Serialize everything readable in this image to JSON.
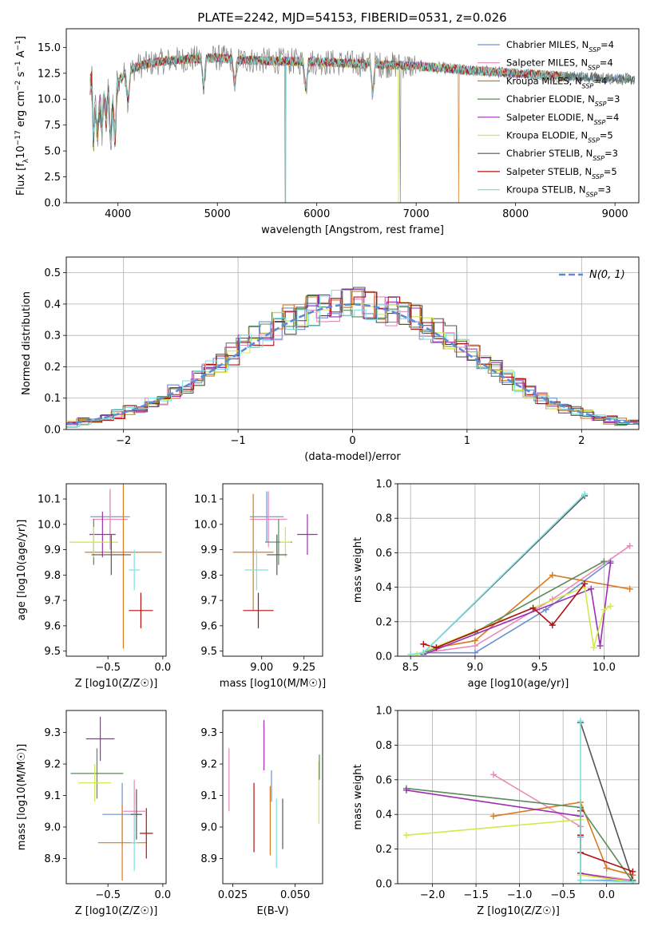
{
  "chart_data": [
    {
      "id": "spectrum",
      "type": "line",
      "title": "PLATE=2242, MJD=54153, FIBERID=0531, z=0.026",
      "xlabel": "wavelength [Angstrom, rest frame]",
      "ylabel": "Flux [f_λ 10^-17 erg cm^-2 s^-1 A^-1]",
      "xlim": [
        3480,
        9240
      ],
      "ylim": [
        0,
        16.8
      ],
      "xticks": [
        4000,
        5000,
        6000,
        7000,
        8000,
        9000
      ],
      "yticks": [
        0.0,
        2.5,
        5.0,
        7.5,
        10.0,
        12.5,
        15.0
      ],
      "legend_position": "top-right",
      "series": [
        {
          "name": "Chabrier MILES, N_SSP=4",
          "color": "#6b8fd6"
        },
        {
          "name": "Salpeter MILES, N_SSP=4",
          "color": "#e88ab8"
        },
        {
          "name": "Kroupa MILES, N_SSP=4",
          "color": "#d97a1e"
        },
        {
          "name": "Chabrier ELODIE, N_SSP=3",
          "color": "#5a8a5a"
        },
        {
          "name": "Salpeter ELODIE, N_SSP=4",
          "color": "#9b2fb0"
        },
        {
          "name": "Kroupa ELODIE, N_SSP=5",
          "color": "#d4e84a"
        },
        {
          "name": "Chabrier STELIB, N_SSP=3",
          "color": "#555555"
        },
        {
          "name": "Salpeter STELIB, N_SSP=5",
          "color": "#b01010"
        },
        {
          "name": "Kroupa STELIB, N_SSP=3",
          "color": "#7fe0e0"
        }
      ],
      "observed_color": "#808080",
      "continuum": {
        "x": [
          3750,
          3850,
          3950,
          4050,
          4200,
          4400,
          4600,
          4800,
          5000,
          5200,
          5500,
          6000,
          6500,
          7000,
          7500,
          8000,
          8500,
          9000,
          9200
        ],
        "y": [
          8.5,
          10.0,
          11.0,
          12.3,
          13.2,
          13.6,
          13.8,
          13.9,
          14.0,
          13.8,
          13.7,
          13.6,
          13.4,
          13.2,
          12.8,
          12.5,
          12.2,
          12.0,
          11.9
        ]
      }
    },
    {
      "id": "residuals",
      "type": "line",
      "xlabel": "(data-model)/error",
      "ylabel": "Normed distribution",
      "xlim": [
        -2.5,
        2.5
      ],
      "ylim": [
        0,
        0.55
      ],
      "xticks": [
        -2,
        -1,
        0,
        1,
        2
      ],
      "yticks": [
        0.0,
        0.1,
        0.2,
        0.3,
        0.4,
        0.5
      ],
      "legend": "N(0, 1)",
      "legend_position": "top-right",
      "bin_width": 0.1,
      "base": [
        0.02,
        0.025,
        0.03,
        0.04,
        0.05,
        0.06,
        0.07,
        0.085,
        0.1,
        0.12,
        0.14,
        0.165,
        0.19,
        0.215,
        0.24,
        0.27,
        0.29,
        0.31,
        0.33,
        0.35,
        0.365,
        0.38,
        0.39,
        0.395,
        0.4,
        0.4,
        0.395,
        0.39,
        0.38,
        0.365,
        0.35,
        0.33,
        0.31,
        0.29,
        0.27,
        0.24,
        0.215,
        0.19,
        0.165,
        0.14,
        0.12,
        0.1,
        0.085,
        0.07,
        0.06,
        0.05,
        0.04,
        0.03,
        0.025,
        0.02
      ]
    },
    {
      "id": "age-vs-Z",
      "type": "scatter",
      "xlabel": "Z [log10(Z/Z☉)]",
      "ylabel": "age  [log10(age/yr)]",
      "xlim": [
        -0.88,
        0.03
      ],
      "ylim": [
        9.48,
        10.16
      ],
      "xticks": [
        -0.5,
        0.0
      ],
      "xticklabels": [
        "−0.5",
        "0.0"
      ],
      "yticks": [
        9.5,
        9.6,
        9.7,
        9.8,
        9.9,
        10.0,
        10.1
      ],
      "points": [
        {
          "x": -0.48,
          "y": 10.03,
          "xerr": 0.18,
          "yerr": 0.1,
          "color": "#6b8fd6"
        },
        {
          "x": -0.48,
          "y": 10.02,
          "xerr": 0.16,
          "yerr": 0.12,
          "color": "#e88ab8"
        },
        {
          "x": -0.36,
          "y": 9.89,
          "xerr": 0.35,
          "yerr": 0.38,
          "color": "#d97a1e"
        },
        {
          "x": -0.63,
          "y": 9.93,
          "xerr": 0.22,
          "yerr": 0.09,
          "color": "#5a8a5a"
        },
        {
          "x": -0.55,
          "y": 9.96,
          "xerr": 0.12,
          "yerr": 0.09,
          "color": "#9b2fb0"
        },
        {
          "x": -0.63,
          "y": 9.93,
          "xerr": 0.22,
          "yerr": 0.06,
          "color": "#d4e84a"
        },
        {
          "x": -0.47,
          "y": 9.88,
          "xerr": 0.18,
          "yerr": 0.08,
          "color": "#555555"
        },
        {
          "x": -0.2,
          "y": 9.66,
          "xerr": 0.11,
          "yerr": 0.07,
          "color": "#b01010"
        },
        {
          "x": -0.26,
          "y": 9.82,
          "xerr": 0.05,
          "yerr": 0.08,
          "color": "#7fe0e0"
        }
      ]
    },
    {
      "id": "age-vs-mass",
      "type": "scatter",
      "xlabel": "mass [log10(M/M☉)]",
      "ylabel": "",
      "xlim": [
        8.77,
        9.36
      ],
      "ylim": [
        9.48,
        10.16
      ],
      "xticks": [
        9.0,
        9.25
      ],
      "xticklabels": [
        "9.00",
        "9.25"
      ],
      "yticks": [
        9.5,
        9.6,
        9.7,
        9.8,
        9.9,
        10.0,
        10.1
      ],
      "points": [
        {
          "x": 9.03,
          "y": 10.03,
          "xerr": 0.1,
          "yerr": 0.1,
          "color": "#6b8fd6"
        },
        {
          "x": 9.04,
          "y": 10.02,
          "xerr": 0.11,
          "yerr": 0.11,
          "color": "#e88ab8"
        },
        {
          "x": 8.95,
          "y": 9.89,
          "xerr": 0.12,
          "yerr": 0.23,
          "color": "#d97a1e"
        },
        {
          "x": 9.1,
          "y": 9.93,
          "xerr": 0.08,
          "yerr": 0.09,
          "color": "#5a8a5a"
        },
        {
          "x": 9.27,
          "y": 9.96,
          "xerr": 0.06,
          "yerr": 0.08,
          "color": "#9b2fb0"
        },
        {
          "x": 9.14,
          "y": 9.93,
          "xerr": 0.03,
          "yerr": 0.06,
          "color": "#d4e84a"
        },
        {
          "x": 9.09,
          "y": 9.88,
          "xerr": 0.06,
          "yerr": 0.08,
          "color": "#555555"
        },
        {
          "x": 8.98,
          "y": 9.66,
          "xerr": 0.09,
          "yerr": 0.07,
          "color": "#b01010"
        },
        {
          "x": 8.97,
          "y": 9.82,
          "xerr": 0.07,
          "yerr": 0.08,
          "color": "#7fe0e0"
        }
      ]
    },
    {
      "id": "mass-vs-Z",
      "type": "scatter",
      "xlabel": "Z [log10(Z/Z☉)]",
      "ylabel": "mass [log10(M/M☉)]",
      "xlim": [
        -0.88,
        0.03
      ],
      "ylim": [
        8.82,
        9.37
      ],
      "xticks": [
        -0.5,
        0.0
      ],
      "xticklabels": [
        "−0.5",
        "0.0"
      ],
      "yticks": [
        8.9,
        9.0,
        9.1,
        9.2,
        9.3
      ],
      "points": [
        {
          "x": -0.37,
          "y": 9.04,
          "xerr": 0.18,
          "yerr": 0.1,
          "color": "#6b8fd6"
        },
        {
          "x": -0.26,
          "y": 9.05,
          "xerr": 0.1,
          "yerr": 0.1,
          "color": "#e88ab8"
        },
        {
          "x": -0.37,
          "y": 8.95,
          "xerr": 0.22,
          "yerr": 0.12,
          "color": "#d97a1e"
        },
        {
          "x": -0.6,
          "y": 9.17,
          "xerr": 0.24,
          "yerr": 0.08,
          "color": "#5a8a5a"
        },
        {
          "x": -0.57,
          "y": 9.28,
          "xerr": 0.13,
          "yerr": 0.07,
          "color": "#9b2fb0"
        },
        {
          "x": -0.62,
          "y": 9.14,
          "xerr": 0.15,
          "yerr": 0.06,
          "color": "#d4e84a"
        },
        {
          "x": -0.24,
          "y": 9.04,
          "xerr": 0.05,
          "yerr": 0.08,
          "color": "#555555"
        },
        {
          "x": -0.15,
          "y": 8.98,
          "xerr": 0.06,
          "yerr": 0.08,
          "color": "#b01010"
        },
        {
          "x": -0.26,
          "y": 8.95,
          "xerr": 0.03,
          "yerr": 0.09,
          "color": "#7fe0e0"
        }
      ]
    },
    {
      "id": "mass-vs-EBV",
      "type": "scatter",
      "xlabel": "E(B-V)",
      "ylabel": "",
      "xlim": [
        0.021,
        0.061
      ],
      "ylim": [
        8.82,
        9.37
      ],
      "xticks": [
        0.025,
        0.05
      ],
      "xticklabels": [
        "0.025",
        "0.050"
      ],
      "yticks": [
        8.9,
        9.0,
        9.1,
        9.2,
        9.3
      ],
      "points": [
        {
          "x": 0.0235,
          "y": 9.15,
          "yerr": 0.1,
          "color": "#e88ab8"
        },
        {
          "x": 0.0335,
          "y": 9.03,
          "yerr": 0.11,
          "color": "#b01010"
        },
        {
          "x": 0.0375,
          "y": 9.26,
          "yerr": 0.08,
          "color": "#9b2fb0"
        },
        {
          "x": 0.04,
          "y": 9.02,
          "yerr": 0.11,
          "color": "#d97a1e"
        },
        {
          "x": 0.0405,
          "y": 9.13,
          "yerr": 0.05,
          "color": "#6b8fd6"
        },
        {
          "x": 0.0425,
          "y": 8.98,
          "yerr": 0.11,
          "color": "#7fe0e0"
        },
        {
          "x": 0.045,
          "y": 9.01,
          "yerr": 0.08,
          "color": "#555555"
        },
        {
          "x": 0.0595,
          "y": 9.11,
          "yerr": 0.1,
          "color": "#d4e84a"
        },
        {
          "x": 0.0597,
          "y": 9.19,
          "yerr": 0.04,
          "color": "#5a8a5a"
        }
      ]
    },
    {
      "id": "weight-vs-age",
      "type": "line",
      "xlabel": "age  [log10(age/yr)]",
      "ylabel": "mass weight",
      "xlim": [
        8.4,
        10.27
      ],
      "ylim": [
        0,
        1
      ],
      "xticks": [
        8.5,
        9.0,
        9.5,
        10.0
      ],
      "yticks": [
        0.0,
        0.2,
        0.4,
        0.6,
        0.8,
        1.0
      ],
      "grid": true,
      "series": [
        {
          "name": "Chabrier MILES, N_SSP=4",
          "color": "#6b8fd6",
          "x": [
            8.6,
            9.0,
            9.55,
            10.05
          ],
          "y": [
            0.02,
            0.02,
            0.27,
            0.55
          ]
        },
        {
          "name": "Salpeter MILES, N_SSP=4",
          "color": "#e88ab8",
          "x": [
            8.6,
            9.0,
            9.6,
            10.2
          ],
          "y": [
            0.02,
            0.06,
            0.33,
            0.64
          ]
        },
        {
          "name": "Kroupa MILES, N_SSP=4",
          "color": "#d97a1e",
          "x": [
            8.7,
            9.0,
            9.6,
            10.2
          ],
          "y": [
            0.05,
            0.09,
            0.47,
            0.39
          ]
        },
        {
          "name": "Chabrier ELODIE, N_SSP=3",
          "color": "#5a8a5a",
          "x": [
            8.6,
            9.0,
            10.0
          ],
          "y": [
            0.02,
            0.14,
            0.55
          ]
        },
        {
          "name": "Salpeter ELODIE, N_SSP=4",
          "color": "#9b2fb0",
          "x": [
            8.6,
            9.9,
            9.97,
            10.05
          ],
          "y": [
            0.01,
            0.39,
            0.06,
            0.54
          ]
        },
        {
          "name": "Kroupa ELODIE, N_SSP=5",
          "color": "#d4e84a",
          "x": [
            8.5,
            8.55,
            9.85,
            9.92,
            10.0,
            10.05
          ],
          "y": [
            0.01,
            0.01,
            0.4,
            0.05,
            0.27,
            0.29
          ]
        },
        {
          "name": "Chabrier STELIB, N_SSP=3",
          "color": "#555555",
          "x": [
            8.6,
            9.85
          ],
          "y": [
            0.02,
            0.93
          ]
        },
        {
          "name": "Salpeter STELIB, N_SSP=5",
          "color": "#b01010",
          "x": [
            8.6,
            8.7,
            9.45,
            9.6,
            9.85
          ],
          "y": [
            0.07,
            0.05,
            0.28,
            0.18,
            0.42
          ]
        },
        {
          "name": "Kroupa STELIB, N_SSP=3",
          "color": "#7fe0e0",
          "x": [
            8.5,
            8.6,
            9.85
          ],
          "y": [
            0.01,
            0.02,
            0.94
          ]
        }
      ]
    },
    {
      "id": "weight-vs-Z",
      "type": "line",
      "xlabel": "Z [log10(Z/Z☉)]",
      "ylabel": "mass weight",
      "xlim": [
        -2.4,
        0.37
      ],
      "ylim": [
        0,
        1
      ],
      "xticks": [
        -2.0,
        -1.5,
        -1.0,
        -0.5,
        0.0
      ],
      "xticklabels": [
        "−2.0",
        "−1.5",
        "−1.0",
        "−0.5",
        "0.0"
      ],
      "yticks": [
        0.0,
        0.2,
        0.4,
        0.6,
        0.8,
        1.0
      ],
      "grid": true,
      "series": [
        {
          "name": "Chabrier MILES, N_SSP=4",
          "color": "#6b8fd6",
          "x": [
            -0.3,
            -0.3,
            0.3
          ],
          "y": [
            0.27,
            0.02,
            0.02
          ]
        },
        {
          "name": "Salpeter MILES, N_SSP=4",
          "color": "#e88ab8",
          "x": [
            -1.3,
            -0.3,
            -0.3,
            0.3
          ],
          "y": [
            0.63,
            0.33,
            0.06,
            0.02
          ]
        },
        {
          "name": "Kroupa MILES, N_SSP=4",
          "color": "#d97a1e",
          "x": [
            -1.3,
            -0.3,
            0.0,
            0.3
          ],
          "y": [
            0.39,
            0.47,
            0.09,
            0.05
          ]
        },
        {
          "name": "Chabrier ELODIE, N_SSP=3",
          "color": "#5a8a5a",
          "x": [
            -2.3,
            -0.3,
            0.3
          ],
          "y": [
            0.55,
            0.44,
            0.01
          ]
        },
        {
          "name": "Salpeter ELODIE, N_SSP=4",
          "color": "#9b2fb0",
          "x": [
            -2.3,
            -0.3,
            -0.3,
            0.3
          ],
          "y": [
            0.54,
            0.39,
            0.06,
            0.01
          ]
        },
        {
          "name": "Kroupa ELODIE, N_SSP=5",
          "color": "#d4e84a",
          "x": [
            -2.3,
            -0.3,
            -0.3,
            0.3
          ],
          "y": [
            0.28,
            0.37,
            0.05,
            0.01
          ]
        },
        {
          "name": "Chabrier STELIB, N_SSP=3",
          "color": "#555555",
          "x": [
            -0.3,
            0.3
          ],
          "y": [
            0.93,
            0.02
          ]
        },
        {
          "name": "Salpeter STELIB, N_SSP=5",
          "color": "#b01010",
          "x": [
            -0.3,
            -0.3,
            -0.3,
            0.3
          ],
          "y": [
            0.42,
            0.28,
            0.18,
            0.07
          ]
        },
        {
          "name": "Kroupa STELIB, N_SSP=3",
          "color": "#7fe0e0",
          "x": [
            -0.3,
            -0.3,
            0.3
          ],
          "y": [
            0.94,
            0.02,
            0.01
          ]
        }
      ]
    }
  ]
}
